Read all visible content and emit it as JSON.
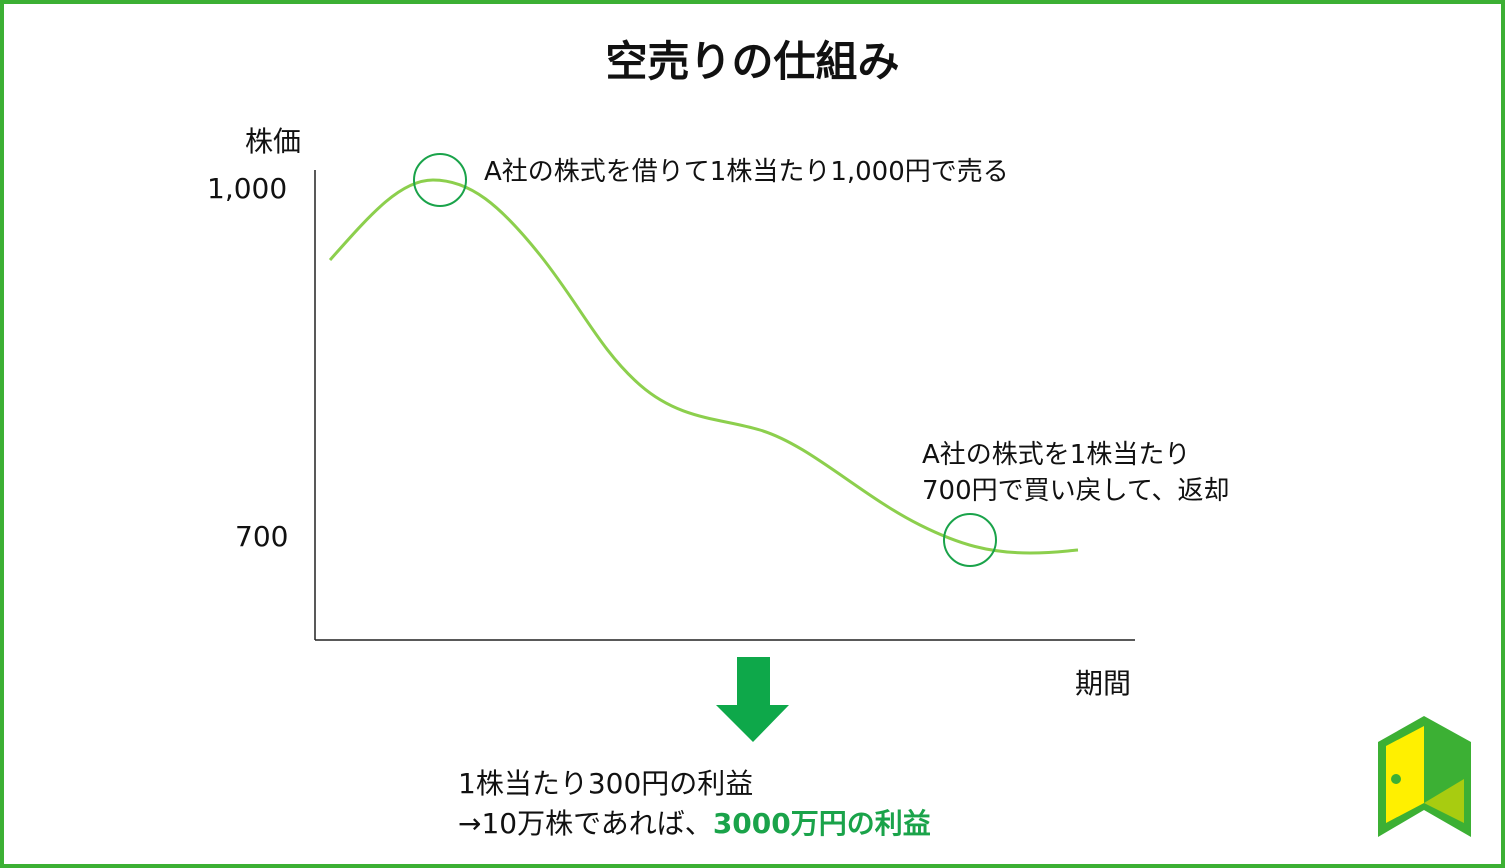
{
  "title": "空売りの仕組み",
  "y_axis_label": "株価",
  "x_axis_label": "期間",
  "y_ticks": [
    "1,000",
    "700"
  ],
  "annotations": {
    "sell": "A社の株式を借りて1株当たり1,000円で売る",
    "buyback_line1": "A社の株式を1株当たり",
    "buyback_line2": "700円で買い戻して、返却"
  },
  "result": {
    "line1": "1株当たり300円の利益",
    "line2_prefix": "→10万株であれば、",
    "line2_highlight": "3000万円の利益"
  },
  "colors": {
    "border": "#3cb034",
    "curve": "#8ccf4d",
    "circle": "#1aa34a",
    "arrow": "#0ea84a",
    "highlight": "#1aa34a"
  },
  "logo": {
    "icon": "open-door-logo"
  }
}
